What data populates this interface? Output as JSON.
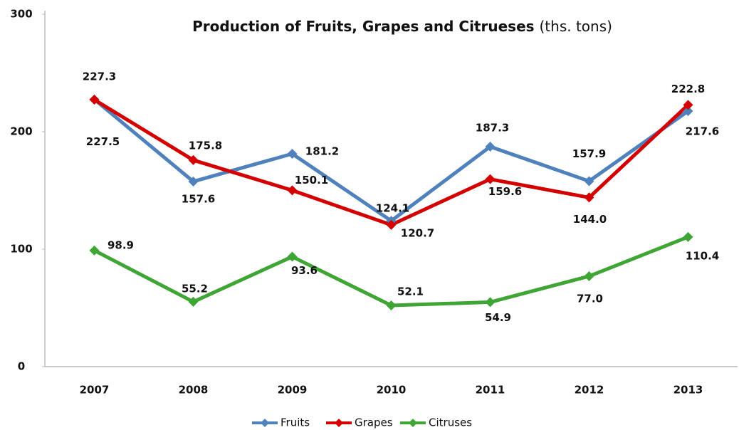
{
  "chart_data": {
    "type": "line",
    "title": "Production of Fruits, Grapes and Citrueses",
    "title_units": "(ths. tons)",
    "categories": [
      "2007",
      "2008",
      "2009",
      "2010",
      "2011",
      "2012",
      "2013"
    ],
    "series": [
      {
        "name": "Fruits",
        "color": "#4f81bd",
        "values": [
          227.5,
          157.6,
          181.2,
          124.1,
          187.3,
          157.9,
          217.6
        ],
        "value_labels": [
          "227.5",
          "157.6",
          "181.2",
          "124.1",
          "187.3",
          "157.9",
          "217.6"
        ]
      },
      {
        "name": "Grapes",
        "color": "#d40000",
        "values": [
          227.3,
          175.8,
          150.1,
          120.7,
          159.6,
          144.0,
          222.8
        ],
        "value_labels": [
          "227.3",
          "175.8",
          "150.1",
          "120.7",
          "159.6",
          "144.0",
          "222.8"
        ]
      },
      {
        "name": "Citruses",
        "color": "#3fa535",
        "values": [
          98.9,
          55.2,
          93.6,
          52.1,
          54.9,
          77.0,
          110.4
        ],
        "value_labels": [
          "98.9",
          "55.2",
          "93.6",
          "52.1",
          "54.9",
          "77.0",
          "110.4"
        ]
      }
    ],
    "ylim": [
      0,
      300
    ],
    "yticks": [
      0,
      100,
      200,
      300
    ],
    "grid": false,
    "legend": "bottom"
  }
}
